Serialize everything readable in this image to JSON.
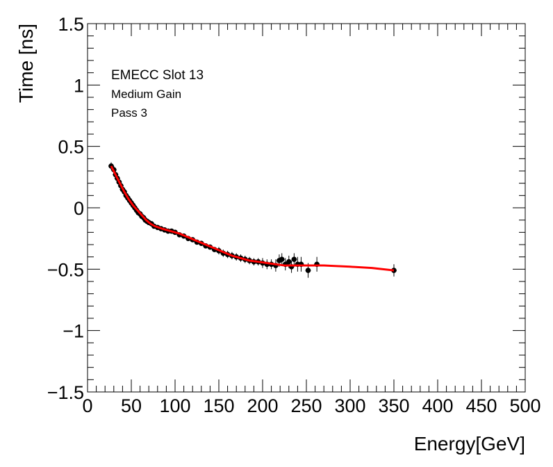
{
  "chart_data": {
    "type": "scatter",
    "xlabel": "Energy[GeV]",
    "ylabel": "Time [ns]",
    "xlim": [
      0,
      500
    ],
    "ylim": [
      -1.5,
      1.5
    ],
    "x_ticks": [
      "0",
      "50",
      "100",
      "150",
      "200",
      "250",
      "300",
      "350",
      "400",
      "450",
      "500"
    ],
    "y_ticks": [
      "1.5",
      "1",
      "0.5",
      "0",
      "−0.5",
      "−1",
      "−1.5"
    ],
    "annotations": {
      "title": "EMECC Slot 13",
      "gain": "Medium Gain",
      "pass": "Pass 3"
    },
    "series": [
      {
        "name": "data",
        "marker": "circle",
        "color": "#000000",
        "points": [
          [
            27,
            0.34,
            0.03
          ],
          [
            30,
            0.31,
            0.03
          ],
          [
            32,
            0.27,
            0.03
          ],
          [
            34,
            0.24,
            0.03
          ],
          [
            36,
            0.21,
            0.03
          ],
          [
            38,
            0.18,
            0.03
          ],
          [
            40,
            0.15,
            0.02
          ],
          [
            42,
            0.13,
            0.02
          ],
          [
            44,
            0.1,
            0.02
          ],
          [
            46,
            0.08,
            0.02
          ],
          [
            48,
            0.06,
            0.02
          ],
          [
            50,
            0.04,
            0.02
          ],
          [
            52,
            0.02,
            0.02
          ],
          [
            54,
            0.0,
            0.02
          ],
          [
            56,
            -0.02,
            0.02
          ],
          [
            58,
            -0.04,
            0.02
          ],
          [
            60,
            -0.05,
            0.02
          ],
          [
            62,
            -0.07,
            0.02
          ],
          [
            64,
            -0.08,
            0.02
          ],
          [
            66,
            -0.1,
            0.02
          ],
          [
            68,
            -0.11,
            0.02
          ],
          [
            70,
            -0.12,
            0.02
          ],
          [
            73,
            -0.13,
            0.02
          ],
          [
            76,
            -0.15,
            0.02
          ],
          [
            80,
            -0.16,
            0.02
          ],
          [
            84,
            -0.17,
            0.02
          ],
          [
            88,
            -0.18,
            0.02
          ],
          [
            92,
            -0.19,
            0.02
          ],
          [
            96,
            -0.19,
            0.02
          ],
          [
            100,
            -0.2,
            0.02
          ],
          [
            105,
            -0.22,
            0.02
          ],
          [
            110,
            -0.23,
            0.02
          ],
          [
            115,
            -0.25,
            0.02
          ],
          [
            120,
            -0.26,
            0.02
          ],
          [
            125,
            -0.28,
            0.02
          ],
          [
            130,
            -0.29,
            0.02
          ],
          [
            135,
            -0.31,
            0.02
          ],
          [
            140,
            -0.32,
            0.02
          ],
          [
            145,
            -0.34,
            0.02
          ],
          [
            150,
            -0.35,
            0.03
          ],
          [
            155,
            -0.37,
            0.03
          ],
          [
            160,
            -0.38,
            0.03
          ],
          [
            165,
            -0.39,
            0.03
          ],
          [
            170,
            -0.4,
            0.03
          ],
          [
            175,
            -0.41,
            0.03
          ],
          [
            180,
            -0.42,
            0.03
          ],
          [
            185,
            -0.43,
            0.03
          ],
          [
            190,
            -0.44,
            0.03
          ],
          [
            195,
            -0.44,
            0.03
          ],
          [
            200,
            -0.45,
            0.04
          ],
          [
            205,
            -0.46,
            0.04
          ],
          [
            210,
            -0.46,
            0.04
          ],
          [
            215,
            -0.47,
            0.05
          ],
          [
            219,
            -0.43,
            0.05
          ],
          [
            222,
            -0.42,
            0.05
          ],
          [
            226,
            -0.46,
            0.05
          ],
          [
            230,
            -0.44,
            0.05
          ],
          [
            233,
            -0.48,
            0.05
          ],
          [
            236,
            -0.42,
            0.05
          ],
          [
            240,
            -0.46,
            0.06
          ],
          [
            244,
            -0.46,
            0.06
          ],
          [
            252,
            -0.51,
            0.06
          ],
          [
            262,
            -0.46,
            0.06
          ],
          [
            350,
            -0.51,
            0.05
          ]
        ]
      },
      {
        "name": "fit",
        "color": "#ff0000",
        "points": [
          [
            27,
            0.34
          ],
          [
            32,
            0.27
          ],
          [
            37,
            0.2
          ],
          [
            42,
            0.13
          ],
          [
            47,
            0.07
          ],
          [
            52,
            0.02
          ],
          [
            57,
            -0.02
          ],
          [
            62,
            -0.06
          ],
          [
            67,
            -0.1
          ],
          [
            72,
            -0.13
          ],
          [
            77,
            -0.15
          ],
          [
            85,
            -0.17
          ],
          [
            95,
            -0.19
          ],
          [
            105,
            -0.21
          ],
          [
            115,
            -0.24
          ],
          [
            125,
            -0.27
          ],
          [
            135,
            -0.3
          ],
          [
            145,
            -0.33
          ],
          [
            155,
            -0.36
          ],
          [
            165,
            -0.39
          ],
          [
            175,
            -0.41
          ],
          [
            185,
            -0.43
          ],
          [
            195,
            -0.44
          ],
          [
            205,
            -0.45
          ],
          [
            215,
            -0.46
          ],
          [
            225,
            -0.47
          ],
          [
            235,
            -0.47
          ],
          [
            250,
            -0.47
          ],
          [
            270,
            -0.47
          ],
          [
            300,
            -0.48
          ],
          [
            325,
            -0.49
          ],
          [
            350,
            -0.51
          ]
        ]
      }
    ]
  }
}
